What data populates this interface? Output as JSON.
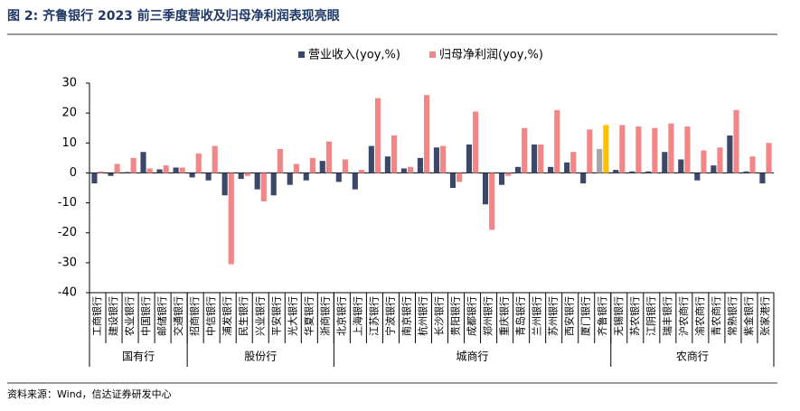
{
  "chart_data": {
    "type": "bar",
    "title": "图 2: 齐鲁银行 2023 前三季度营收及归母净利润表现亮眼",
    "source": "资料来源：Wind，信达证券研发中心",
    "categories": [
      "工商银行",
      "建设银行",
      "农业银行",
      "中国银行",
      "邮储银行",
      "交通银行",
      "招商银行",
      "中信银行",
      "浦发银行",
      "民生银行",
      "兴业银行",
      "平安银行",
      "光大银行",
      "华夏银行",
      "浙商银行",
      "北京银行",
      "上海银行",
      "江苏银行",
      "宁波银行",
      "南京银行",
      "杭州银行",
      "长沙银行",
      "贵阳银行",
      "成都银行",
      "郑州银行",
      "重庆银行",
      "青岛银行",
      "兰州银行",
      "苏州银行",
      "西安银行",
      "厦门银行",
      "齐鲁银行",
      "无锡银行",
      "苏农银行",
      "江阴银行",
      "瑞丰银行",
      "沪农商行",
      "渝农商行",
      "青农商行",
      "常熟银行",
      "紫金银行",
      "张家港行"
    ],
    "groups": [
      {
        "name": "国有行",
        "size": 6
      },
      {
        "name": "股份行",
        "size": 9
      },
      {
        "name": "城商行",
        "size": 17
      },
      {
        "name": "农商行",
        "size": 10
      }
    ],
    "highlight_category": "齐鲁银行",
    "series": [
      {
        "name": "营业收入(yoy,%)",
        "color": "#3d4869",
        "highlight_color": "#a6a6a6",
        "values": [
          -3.5,
          -1,
          0.3,
          7,
          1.2,
          1.8,
          -1.5,
          -2.5,
          -7.5,
          -2,
          -5.5,
          -7.5,
          -4,
          -2.5,
          4,
          -3,
          -5.5,
          9,
          5.5,
          1.5,
          5,
          8.5,
          -5,
          9.5,
          -10.5,
          -4,
          2,
          9.5,
          2,
          3.5,
          -3.5,
          8,
          1,
          0.5,
          0.5,
          7,
          4.5,
          -2.5,
          2.5,
          12.5,
          0.5,
          -3.5
        ]
      },
      {
        "name": "归母净利润(yoy,%)",
        "color": "#f28686",
        "highlight_color": "#ffc000",
        "values": [
          0.5,
          3,
          5,
          1.5,
          2.5,
          1.8,
          6.5,
          9,
          -30.5,
          -1,
          -9.5,
          8,
          3,
          5,
          10.5,
          4.5,
          1,
          25,
          12.5,
          2,
          26,
          9,
          -3,
          20.5,
          -19,
          -1,
          15,
          9.5,
          21,
          7,
          14.5,
          16,
          16,
          15.5,
          15,
          16.5,
          15.5,
          7.5,
          8.5,
          21,
          5.5,
          10
        ]
      }
    ],
    "ylim": [
      -40,
      30
    ],
    "yticks": [
      -40,
      -30,
      -20,
      -10,
      0,
      10,
      20,
      30
    ],
    "legend": "top"
  }
}
